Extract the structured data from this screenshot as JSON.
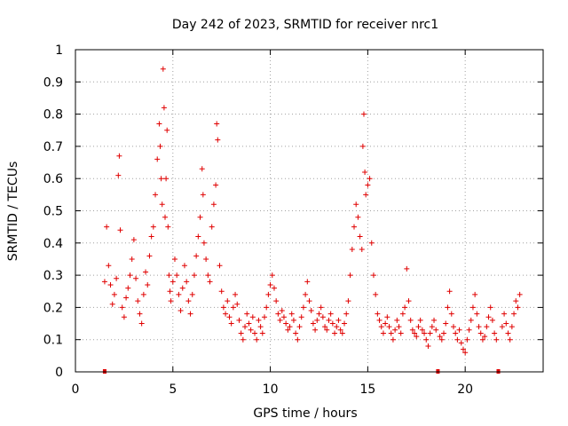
{
  "chart_data": {
    "type": "scatter",
    "title": "Day 242 of 2023, SRMTID for receiver nrc1",
    "xlabel": "GPS time / hours",
    "ylabel": "SRMTID / TECUs",
    "xlim": [
      0,
      24
    ],
    "ylim": [
      0,
      1
    ],
    "xticks": [
      0,
      5,
      10,
      15,
      20
    ],
    "xtick_labels": [
      "0",
      "5",
      "10",
      "15",
      "20"
    ],
    "yticks": [
      0,
      0.1,
      0.2,
      0.3,
      0.4,
      0.5,
      0.6,
      0.7,
      0.8,
      0.9,
      1
    ],
    "ytick_labels": [
      "0",
      "0.1",
      "0.2",
      "0.3",
      "0.4",
      "0.5",
      "0.6",
      "0.7",
      "0.8",
      "0.9",
      "1"
    ],
    "grid": true,
    "marker": "plus",
    "color": "#e00000",
    "zero_markers_x": [
      1.5,
      18.6,
      21.7
    ],
    "series": [
      {
        "name": "SRMTID",
        "x": [
          1.5,
          1.6,
          1.7,
          1.8,
          1.9,
          2.0,
          2.1,
          2.2,
          2.25,
          2.3,
          2.4,
          2.5,
          2.6,
          2.7,
          2.8,
          2.9,
          3.0,
          3.1,
          3.2,
          3.3,
          3.4,
          3.5,
          3.6,
          3.7,
          3.8,
          3.9,
          4.0,
          4.1,
          4.2,
          4.3,
          4.35,
          4.4,
          4.45,
          4.5,
          4.55,
          4.6,
          4.65,
          4.7,
          4.75,
          4.8,
          4.85,
          4.9,
          5.0,
          5.1,
          5.2,
          5.3,
          5.4,
          5.5,
          5.6,
          5.7,
          5.8,
          5.9,
          6.0,
          6.1,
          6.2,
          6.3,
          6.4,
          6.5,
          6.55,
          6.6,
          6.7,
          6.8,
          6.9,
          7.0,
          7.1,
          7.2,
          7.25,
          7.3,
          7.4,
          7.5,
          7.6,
          7.7,
          7.8,
          7.9,
          8.0,
          8.1,
          8.2,
          8.3,
          8.4,
          8.5,
          8.6,
          8.7,
          8.8,
          8.9,
          9.0,
          9.1,
          9.2,
          9.3,
          9.4,
          9.5,
          9.6,
          9.7,
          9.8,
          9.9,
          10.0,
          10.1,
          10.2,
          10.3,
          10.4,
          10.5,
          10.6,
          10.7,
          10.8,
          10.9,
          11.0,
          11.1,
          11.2,
          11.3,
          11.4,
          11.5,
          11.6,
          11.7,
          11.8,
          11.9,
          12.0,
          12.1,
          12.2,
          12.3,
          12.4,
          12.5,
          12.6,
          12.7,
          12.8,
          12.9,
          13.0,
          13.1,
          13.2,
          13.3,
          13.4,
          13.5,
          13.6,
          13.7,
          13.8,
          13.9,
          14.0,
          14.1,
          14.2,
          14.3,
          14.4,
          14.5,
          14.6,
          14.7,
          14.75,
          14.8,
          14.85,
          14.9,
          15.0,
          15.1,
          15.2,
          15.3,
          15.4,
          15.5,
          15.6,
          15.7,
          15.8,
          15.9,
          16.0,
          16.1,
          16.2,
          16.3,
          16.4,
          16.5,
          16.6,
          16.7,
          16.8,
          16.9,
          17.0,
          17.1,
          17.2,
          17.3,
          17.4,
          17.5,
          17.6,
          17.7,
          17.8,
          17.9,
          18.0,
          18.1,
          18.2,
          18.3,
          18.4,
          18.5,
          18.7,
          18.8,
          18.9,
          19.0,
          19.1,
          19.2,
          19.3,
          19.4,
          19.5,
          19.6,
          19.7,
          19.8,
          19.9,
          20.0,
          20.1,
          20.2,
          20.3,
          20.4,
          20.5,
          20.6,
          20.7,
          20.8,
          20.9,
          21.0,
          21.1,
          21.2,
          21.3,
          21.4,
          21.5,
          21.6,
          21.9,
          22.0,
          22.1,
          22.2,
          22.3,
          22.4,
          22.5,
          22.6,
          22.7,
          22.8
        ],
        "y": [
          0.28,
          0.45,
          0.33,
          0.27,
          0.21,
          0.24,
          0.29,
          0.61,
          0.67,
          0.44,
          0.2,
          0.17,
          0.23,
          0.26,
          0.3,
          0.35,
          0.41,
          0.29,
          0.22,
          0.18,
          0.15,
          0.24,
          0.31,
          0.27,
          0.36,
          0.42,
          0.45,
          0.55,
          0.66,
          0.77,
          0.7,
          0.6,
          0.52,
          0.94,
          0.82,
          0.48,
          0.6,
          0.75,
          0.45,
          0.3,
          0.25,
          0.22,
          0.28,
          0.35,
          0.3,
          0.24,
          0.19,
          0.26,
          0.33,
          0.28,
          0.22,
          0.18,
          0.24,
          0.3,
          0.36,
          0.42,
          0.48,
          0.63,
          0.55,
          0.4,
          0.35,
          0.3,
          0.28,
          0.45,
          0.52,
          0.58,
          0.77,
          0.72,
          0.33,
          0.25,
          0.2,
          0.18,
          0.22,
          0.17,
          0.15,
          0.2,
          0.24,
          0.21,
          0.16,
          0.12,
          0.1,
          0.14,
          0.18,
          0.15,
          0.13,
          0.17,
          0.12,
          0.1,
          0.16,
          0.14,
          0.12,
          0.17,
          0.2,
          0.24,
          0.27,
          0.3,
          0.26,
          0.22,
          0.18,
          0.16,
          0.19,
          0.17,
          0.15,
          0.13,
          0.14,
          0.18,
          0.16,
          0.12,
          0.1,
          0.14,
          0.17,
          0.2,
          0.24,
          0.28,
          0.22,
          0.19,
          0.15,
          0.13,
          0.16,
          0.18,
          0.2,
          0.17,
          0.14,
          0.13,
          0.16,
          0.18,
          0.15,
          0.12,
          0.14,
          0.16,
          0.13,
          0.12,
          0.15,
          0.18,
          0.22,
          0.3,
          0.38,
          0.45,
          0.52,
          0.48,
          0.42,
          0.38,
          0.7,
          0.8,
          0.62,
          0.55,
          0.58,
          0.6,
          0.4,
          0.3,
          0.24,
          0.18,
          0.16,
          0.14,
          0.12,
          0.15,
          0.17,
          0.14,
          0.12,
          0.1,
          0.13,
          0.16,
          0.14,
          0.12,
          0.18,
          0.2,
          0.32,
          0.22,
          0.16,
          0.13,
          0.12,
          0.11,
          0.14,
          0.16,
          0.13,
          0.12,
          0.1,
          0.08,
          0.12,
          0.14,
          0.16,
          0.13,
          0.11,
          0.1,
          0.12,
          0.15,
          0.2,
          0.25,
          0.18,
          0.14,
          0.12,
          0.1,
          0.13,
          0.09,
          0.07,
          0.06,
          0.1,
          0.13,
          0.16,
          0.2,
          0.24,
          0.18,
          0.14,
          0.12,
          0.1,
          0.11,
          0.14,
          0.17,
          0.2,
          0.16,
          0.12,
          0.1,
          0.14,
          0.18,
          0.15,
          0.12,
          0.1,
          0.14,
          0.18,
          0.22,
          0.2,
          0.24
        ]
      }
    ]
  }
}
